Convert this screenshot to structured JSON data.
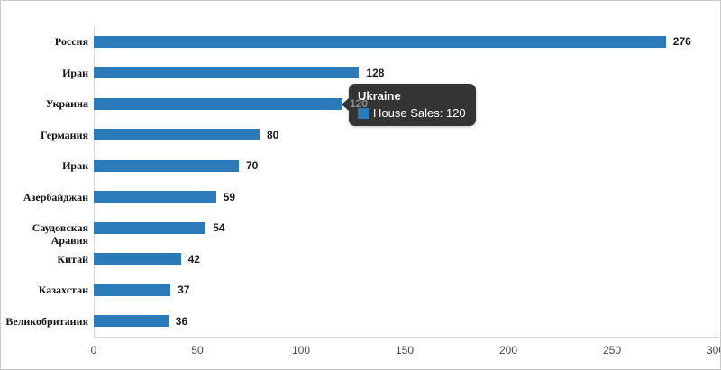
{
  "chart_data": {
    "type": "bar",
    "orientation": "horizontal",
    "title": "",
    "xlabel": "",
    "ylabel": "",
    "categories": [
      "Россия",
      "Иран",
      "Украина",
      "Германия",
      "Ирак",
      "Азербайджан",
      "Саудовская Аравия",
      "Китай",
      "Казахстан",
      "Великобритания"
    ],
    "series": [
      {
        "name": "House Sales",
        "values": [
          276,
          128,
          120,
          80,
          70,
          59,
          54,
          42,
          37,
          36
        ]
      }
    ],
    "value_labels": [
      "276",
      "128",
      "120",
      "80",
      "70",
      "59",
      "54",
      "42",
      "37",
      "36"
    ],
    "xlim": [
      0,
      300
    ],
    "x_ticks": [
      "0",
      "50",
      "100",
      "150",
      "200",
      "250",
      "300"
    ],
    "grid": false,
    "legend": false,
    "bar_color": "#2b7bba"
  },
  "tooltip": {
    "title": "Ukraine",
    "series_label": "House Sales",
    "value": "120",
    "text": "House Sales: 120",
    "swatch_color": "#2b7bba",
    "hovered_category": "Украина",
    "hovered_index": 2
  },
  "colors": {
    "bar": "#2b7bba",
    "axis_line": "#d6d6d6",
    "tick_text": "#444444",
    "category_text": "#111111",
    "value_text": "#1a1a1a",
    "tooltip_bg": "#2c2c2c",
    "tooltip_text": "#ffffff",
    "frame_border": "#c9c9c9",
    "background": "#ffffff"
  }
}
